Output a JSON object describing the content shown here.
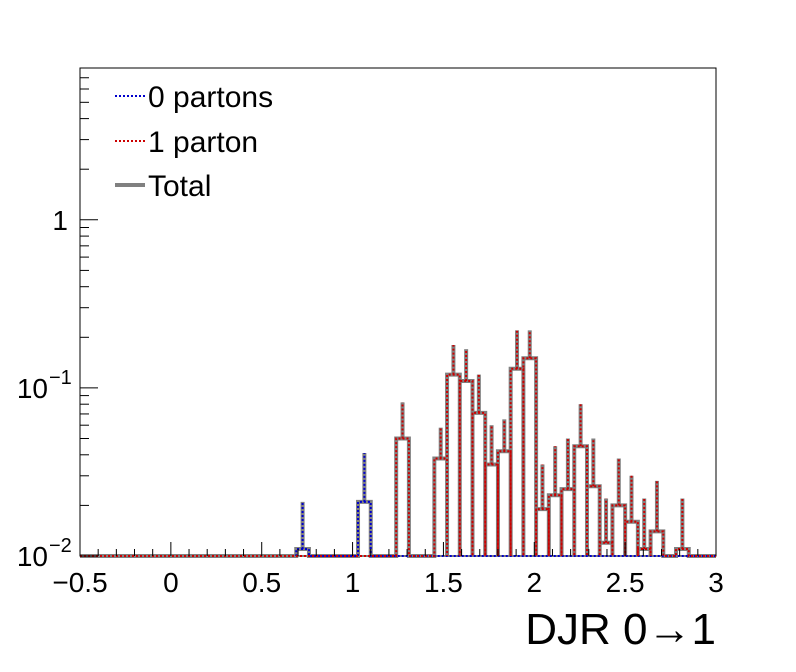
{
  "chart_data": {
    "type": "histogram",
    "title": "",
    "xlabel": "DJR 0→1",
    "ylabel": "",
    "xlim": [
      -0.5,
      3.0
    ],
    "ylim": [
      0.01,
      8.0
    ],
    "yscale": "log",
    "x_ticks": [
      {
        "value": -0.5,
        "label": "−0.5"
      },
      {
        "value": 0,
        "label": "0"
      },
      {
        "value": 0.5,
        "label": "0.5"
      },
      {
        "value": 1,
        "label": "1"
      },
      {
        "value": 1.5,
        "label": "1.5"
      },
      {
        "value": 2,
        "label": "2"
      },
      {
        "value": 2.5,
        "label": "2.5"
      },
      {
        "value": 3,
        "label": "3"
      }
    ],
    "y_ticks": [
      {
        "value": 0.01,
        "base": "10",
        "exp": "−2"
      },
      {
        "value": 0.1,
        "base": "10",
        "exp": "−1"
      },
      {
        "value": 1,
        "base": "1",
        "exp": ""
      }
    ],
    "bin_width": 0.07,
    "legend_position": "top-left",
    "series": [
      {
        "name": "0 partons",
        "color": "#0000cc",
        "style": "dotted",
        "bins": [
          {
            "x": 0.69,
            "y": 0.011,
            "err": 0.021
          },
          {
            "x": 1.03,
            "y": 0.021,
            "err": 0.041
          }
        ]
      },
      {
        "name": "1 parton",
        "color": "#cc0000",
        "style": "dotted",
        "bins": [
          {
            "x": 1.24,
            "y": 0.05,
            "err": 0.082
          },
          {
            "x": 1.45,
            "y": 0.038,
            "err": 0.058
          },
          {
            "x": 1.52,
            "y": 0.12,
            "err": 0.18
          },
          {
            "x": 1.59,
            "y": 0.11,
            "err": 0.17
          },
          {
            "x": 1.66,
            "y": 0.071,
            "err": 0.12
          },
          {
            "x": 1.73,
            "y": 0.035,
            "err": 0.06
          },
          {
            "x": 1.8,
            "y": 0.042,
            "err": 0.065
          },
          {
            "x": 1.87,
            "y": 0.13,
            "err": 0.22
          },
          {
            "x": 1.94,
            "y": 0.15,
            "err": 0.22
          },
          {
            "x": 2.01,
            "y": 0.019,
            "err": 0.035
          },
          {
            "x": 2.08,
            "y": 0.023,
            "err": 0.045
          },
          {
            "x": 2.15,
            "y": 0.025,
            "err": 0.05
          },
          {
            "x": 2.22,
            "y": 0.045,
            "err": 0.08
          },
          {
            "x": 2.29,
            "y": 0.026,
            "err": 0.05
          },
          {
            "x": 2.36,
            "y": 0.012,
            "err": 0.022
          },
          {
            "x": 2.43,
            "y": 0.02,
            "err": 0.038
          },
          {
            "x": 2.5,
            "y": 0.016,
            "err": 0.03
          },
          {
            "x": 2.57,
            "y": 0.011,
            "err": 0.022
          },
          {
            "x": 2.64,
            "y": 0.014,
            "err": 0.028
          },
          {
            "x": 2.78,
            "y": 0.011,
            "err": 0.022
          }
        ]
      },
      {
        "name": "Total",
        "color": "#808080",
        "style": "solid"
      }
    ]
  }
}
